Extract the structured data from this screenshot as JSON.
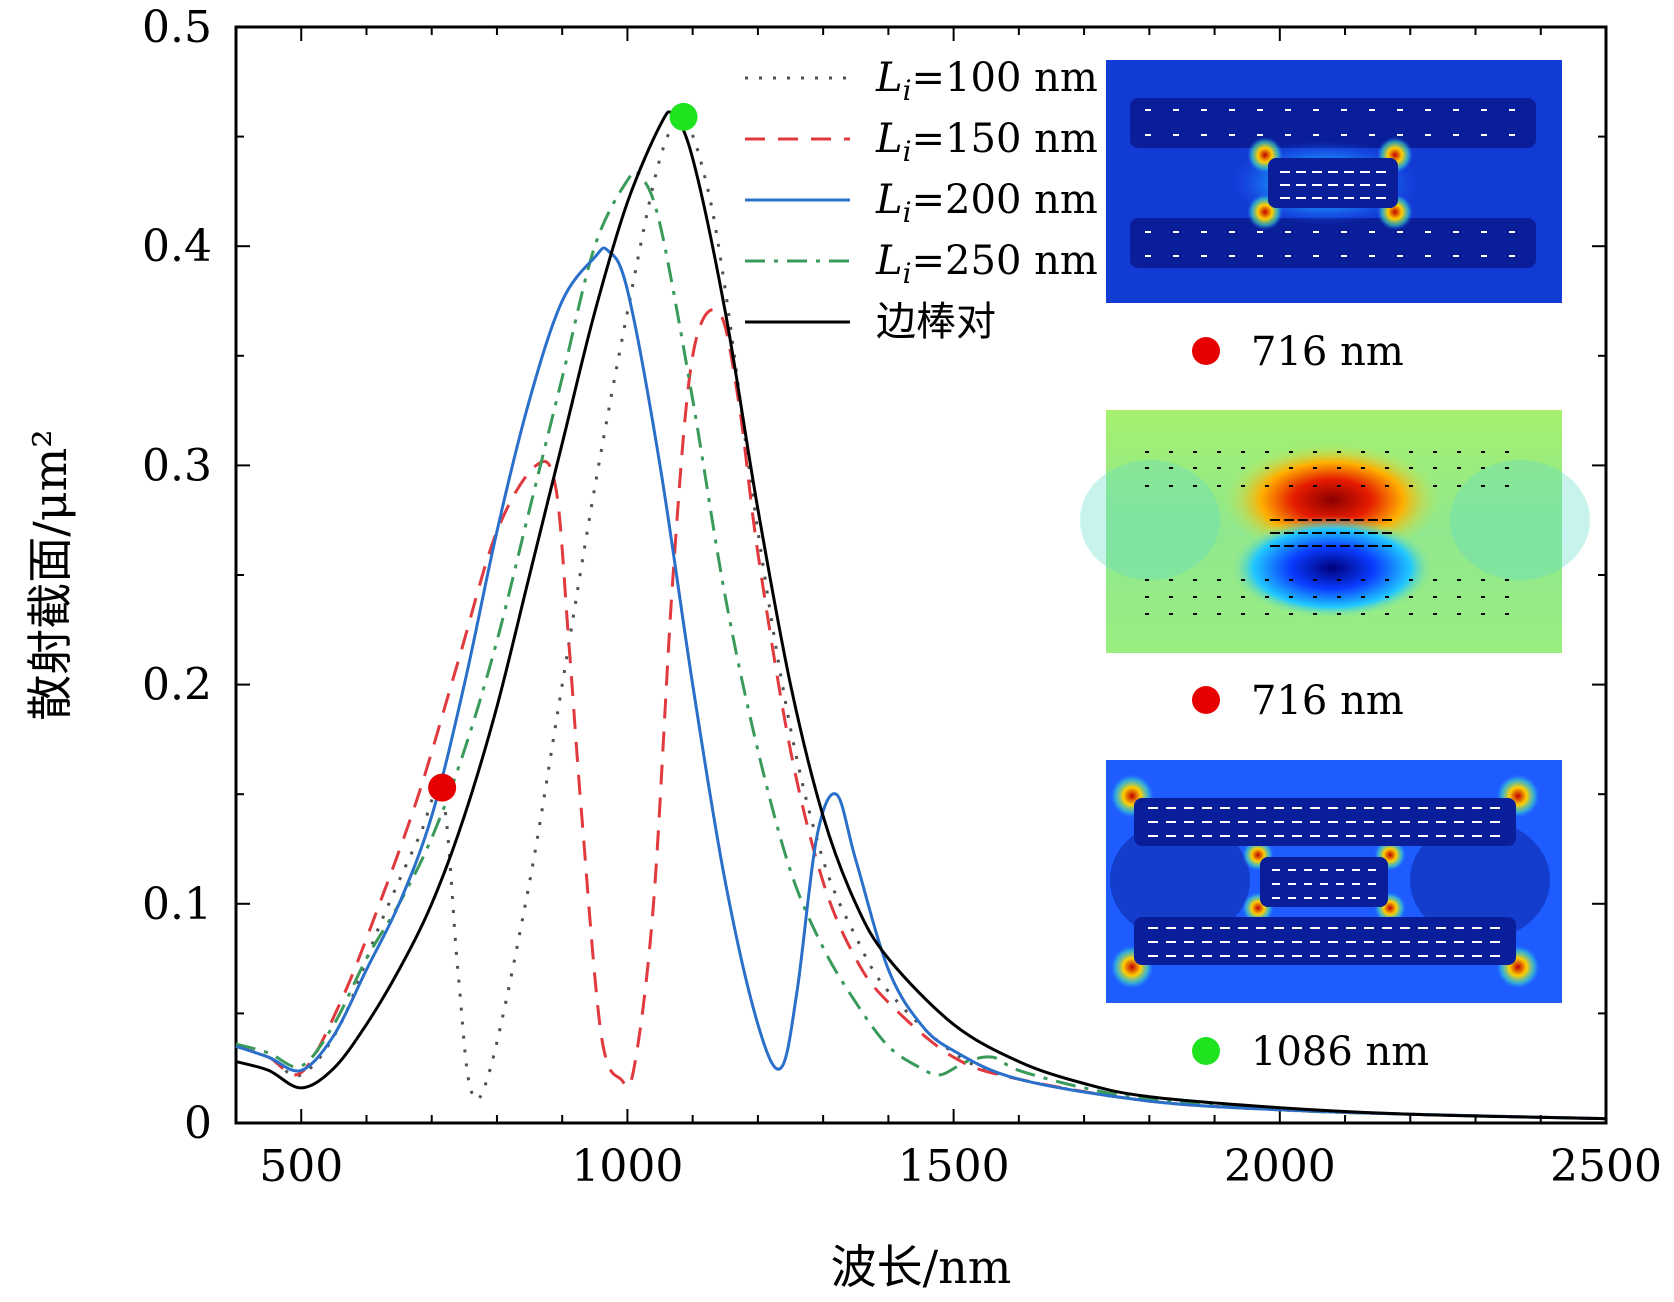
{
  "chart_data": {
    "type": "line",
    "xlabel": "波长/nm",
    "ylabel": "散射截面/μm²",
    "xlim": [
      400,
      2500
    ],
    "ylim": [
      0,
      0.5
    ],
    "xticks": [
      "500",
      "1000",
      "1500",
      "2000",
      "2500"
    ],
    "yticks": [
      "0",
      "0.1",
      "0.2",
      "0.3",
      "0.4",
      "0.5"
    ],
    "grid": false,
    "legend_position": "top-right",
    "series": [
      {
        "name": "Li=100 nm",
        "legend_main": "L",
        "legend_sub": "i",
        "legend_rest": "=100 nm",
        "color": "#505050",
        "style": "dotted",
        "x": [
          400,
          450,
          500,
          560,
          620,
          680,
          716,
          740,
          760,
          790,
          850,
          900,
          950,
          1000,
          1050,
          1086,
          1120,
          1150,
          1200,
          1250,
          1300,
          1350,
          1400,
          1500,
          1600,
          1800,
          2000,
          2200,
          2500
        ],
        "y": [
          0.035,
          0.03,
          0.022,
          0.045,
          0.09,
          0.13,
          0.15,
          0.07,
          0.015,
          0.025,
          0.11,
          0.2,
          0.29,
          0.37,
          0.44,
          0.457,
          0.43,
          0.38,
          0.27,
          0.18,
          0.12,
          0.085,
          0.06,
          0.032,
          0.02,
          0.01,
          0.006,
          0.004,
          0.002
        ]
      },
      {
        "name": "Li=150 nm",
        "legend_main": "L",
        "legend_sub": "i",
        "legend_rest": "=150 nm",
        "color": "#e0393e",
        "style": "dashed",
        "x": [
          400,
          450,
          500,
          560,
          620,
          680,
          740,
          800,
          860,
          890,
          910,
          930,
          960,
          990,
          1010,
          1040,
          1070,
          1100,
          1140,
          1170,
          1200,
          1250,
          1300,
          1350,
          1400,
          1500,
          1600,
          1800,
          2000,
          2200,
          2500
        ],
        "y": [
          0.035,
          0.03,
          0.023,
          0.055,
          0.1,
          0.15,
          0.21,
          0.27,
          0.3,
          0.29,
          0.22,
          0.14,
          0.04,
          0.02,
          0.025,
          0.1,
          0.25,
          0.35,
          0.37,
          0.33,
          0.26,
          0.17,
          0.11,
          0.075,
          0.055,
          0.03,
          0.02,
          0.01,
          0.006,
          0.004,
          0.002
        ]
      },
      {
        "name": "Li=200 nm",
        "legend_main": "L",
        "legend_sub": "i",
        "legend_rest": "=200 nm",
        "color": "#2a6fc9",
        "style": "solid",
        "x": [
          400,
          450,
          500,
          550,
          600,
          650,
          700,
          750,
          800,
          850,
          900,
          950,
          970,
          1000,
          1050,
          1100,
          1150,
          1200,
          1235,
          1260,
          1290,
          1320,
          1350,
          1400,
          1450,
          1500,
          1600,
          1800,
          2000,
          2200,
          2500
        ],
        "y": [
          0.035,
          0.03,
          0.024,
          0.04,
          0.07,
          0.1,
          0.14,
          0.2,
          0.27,
          0.33,
          0.375,
          0.395,
          0.398,
          0.38,
          0.3,
          0.2,
          0.11,
          0.045,
          0.025,
          0.06,
          0.13,
          0.15,
          0.12,
          0.07,
          0.045,
          0.033,
          0.02,
          0.01,
          0.006,
          0.004,
          0.002
        ]
      },
      {
        "name": "Li=250 nm",
        "legend_main": "L",
        "legend_sub": "i",
        "legend_rest": "=250 nm",
        "color": "#3a9a5a",
        "style": "dashdot",
        "x": [
          400,
          450,
          500,
          550,
          600,
          650,
          700,
          750,
          800,
          850,
          900,
          950,
          1000,
          1020,
          1050,
          1100,
          1150,
          1200,
          1250,
          1300,
          1350,
          1400,
          1450,
          1480,
          1520,
          1560,
          1600,
          1700,
          1800,
          2000,
          2200,
          2500
        ],
        "y": [
          0.036,
          0.032,
          0.026,
          0.045,
          0.075,
          0.1,
          0.13,
          0.17,
          0.22,
          0.28,
          0.34,
          0.4,
          0.43,
          0.432,
          0.41,
          0.33,
          0.24,
          0.17,
          0.115,
          0.08,
          0.055,
          0.035,
          0.025,
          0.022,
          0.028,
          0.03,
          0.024,
          0.016,
          0.011,
          0.006,
          0.004,
          0.002
        ]
      },
      {
        "name": "边棒对",
        "legend_main": "边棒对",
        "legend_sub": "",
        "legend_rest": "",
        "color": "#000000",
        "style": "solid",
        "x": [
          400,
          450,
          500,
          550,
          600,
          650,
          700,
          750,
          800,
          850,
          900,
          950,
          1000,
          1050,
          1070,
          1100,
          1150,
          1200,
          1250,
          1300,
          1350,
          1400,
          1500,
          1600,
          1700,
          1800,
          2000,
          2200,
          2500
        ],
        "y": [
          0.028,
          0.024,
          0.016,
          0.025,
          0.045,
          0.07,
          0.1,
          0.14,
          0.19,
          0.25,
          0.31,
          0.37,
          0.42,
          0.455,
          0.46,
          0.44,
          0.37,
          0.28,
          0.2,
          0.14,
          0.1,
          0.075,
          0.045,
          0.028,
          0.018,
          0.012,
          0.007,
          0.004,
          0.002
        ]
      }
    ],
    "markers": [
      {
        "x": 716,
        "y": 0.153,
        "color": "#e60000"
      },
      {
        "x": 1086,
        "y": 0.459,
        "color": "#1ee31e"
      }
    ],
    "insets": [
      {
        "caption": "716 nm",
        "dot_color": "#e60000",
        "type": "field-blue"
      },
      {
        "caption": "716 nm",
        "dot_color": "#e60000",
        "type": "field-rainbow"
      },
      {
        "caption": "1086 nm",
        "dot_color": "#1ee31e",
        "type": "field-blue-bars"
      }
    ]
  }
}
